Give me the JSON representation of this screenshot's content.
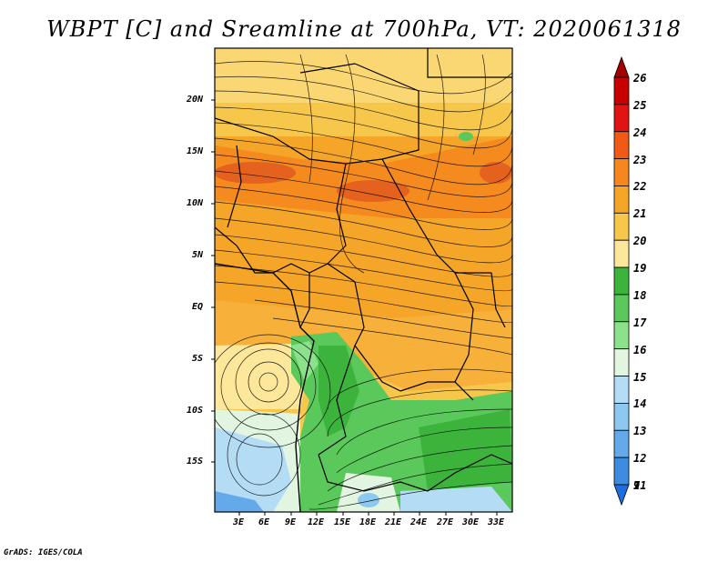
{
  "title": "WBPT [C] and Sreamline at 700hPa, VT: 2020061318",
  "footer": "GrADS: IGES/COLA",
  "map": {
    "lat_labels": [
      "20N",
      "15N",
      "10N",
      "5N",
      "EQ",
      "5S",
      "10S",
      "15S"
    ],
    "lon_labels": [
      "3E",
      "6E",
      "9E",
      "12E",
      "15E",
      "18E",
      "21E",
      "24E",
      "27E",
      "30E",
      "33E"
    ]
  },
  "colorbar": {
    "labels": [
      "26",
      "25",
      "24",
      "23",
      "22",
      "21",
      "20",
      "19",
      "18",
      "17",
      "16",
      "15",
      "14",
      "13",
      "12",
      "11",
      "9",
      "7"
    ],
    "colors": [
      "#a50000",
      "#c80000",
      "#e11414",
      "#f05a14",
      "#f5871e",
      "#f5a528",
      "#f7c74b",
      "#fde79a",
      "#3cb43c",
      "#5ac85a",
      "#8ce18c",
      "#e1f5e1",
      "#b4dcf5",
      "#8cc8f0",
      "#64aaeb",
      "#3c8ce1",
      "#1e6edc"
    ]
  }
}
